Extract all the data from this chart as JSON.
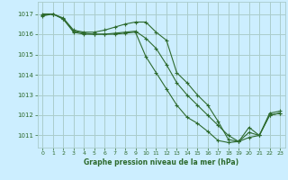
{
  "title": "Graphe pression niveau de la mer (hPa)",
  "bg_color": "#cceeff",
  "grid_color": "#aacccc",
  "line_color": "#2d6a2d",
  "ylim": [
    1010.4,
    1017.6
  ],
  "xlim": [
    -0.5,
    23.5
  ],
  "yticks": [
    1011,
    1012,
    1013,
    1014,
    1015,
    1016,
    1017
  ],
  "xticks": [
    0,
    1,
    2,
    3,
    4,
    5,
    6,
    7,
    8,
    9,
    10,
    11,
    12,
    13,
    14,
    15,
    16,
    17,
    18,
    19,
    20,
    21,
    22,
    23
  ],
  "series": [
    [
      1017.0,
      1017.0,
      1016.8,
      1016.2,
      1016.1,
      1016.1,
      1016.2,
      1016.35,
      1016.5,
      1016.6,
      1016.6,
      1016.1,
      1015.7,
      1014.1,
      1013.6,
      1013.0,
      1012.5,
      1011.7,
      1010.8,
      1010.7,
      1010.9,
      1011.0,
      1012.1,
      1012.2
    ],
    [
      1016.95,
      1017.0,
      1016.75,
      1016.15,
      1016.05,
      1016.0,
      1016.0,
      1016.05,
      1016.1,
      1016.15,
      1015.8,
      1015.3,
      1014.5,
      1013.6,
      1013.0,
      1012.5,
      1012.0,
      1011.5,
      1011.0,
      1010.7,
      1011.15,
      1011.0,
      1012.0,
      1012.1
    ],
    [
      1016.9,
      1017.0,
      1016.75,
      1016.1,
      1016.0,
      1016.0,
      1016.0,
      1016.0,
      1016.05,
      1016.1,
      1014.9,
      1014.1,
      1013.3,
      1012.5,
      1011.9,
      1011.6,
      1011.2,
      1010.75,
      1010.65,
      1010.7,
      1011.4,
      1011.0,
      1012.0,
      1012.1
    ]
  ]
}
